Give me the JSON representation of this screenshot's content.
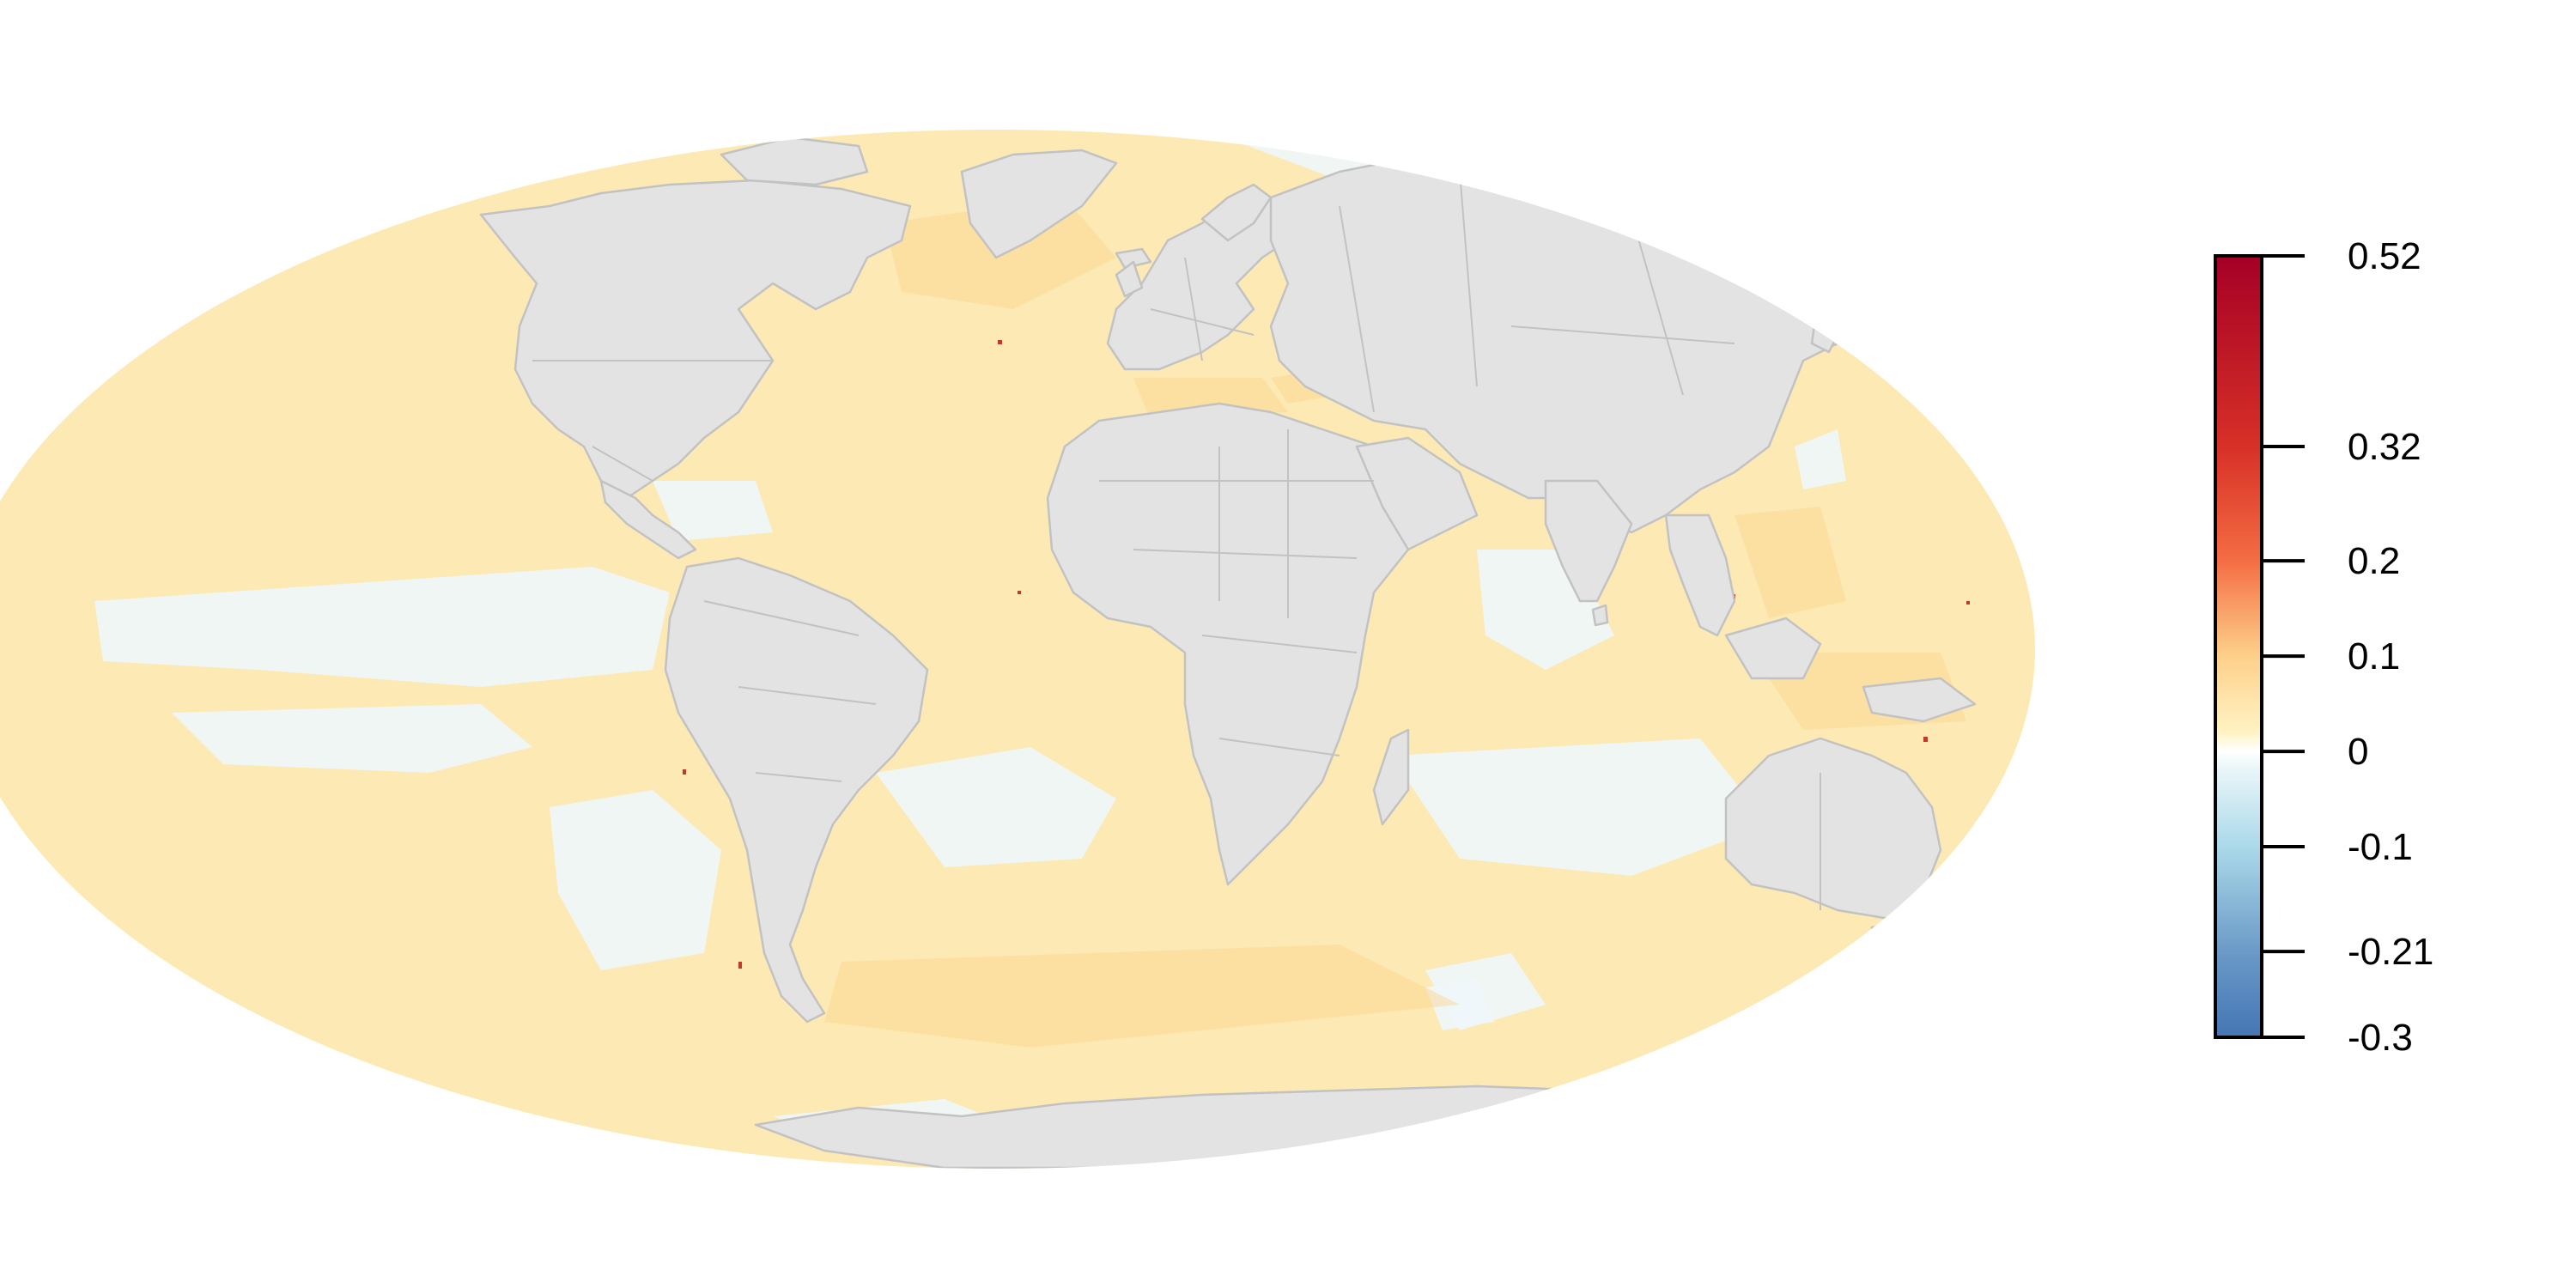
{
  "map": {
    "projection": "Mollweide",
    "ocean_base_color": "#fde9b4",
    "land_color": "#e3e3e3",
    "border_color": "#c2c2c2",
    "negative_patch_color": "#eef7fb",
    "positive_patch_color": "#fbd48c",
    "hotspot_color": "#c0392b"
  },
  "legend": {
    "type": "continuous-colorbar",
    "placement": "right",
    "range": [
      -0.3,
      0.52
    ],
    "ticks": [
      {
        "value": 0.52,
        "label": "0.52"
      },
      {
        "value": 0.32,
        "label": "0.32"
      },
      {
        "value": 0.2,
        "label": "0.2"
      },
      {
        "value": 0.1,
        "label": "0.1"
      },
      {
        "value": 0,
        "label": "0"
      },
      {
        "value": -0.1,
        "label": "-0.1"
      },
      {
        "value": -0.21,
        "label": "-0.21"
      },
      {
        "value": -0.3,
        "label": "-0.3"
      }
    ],
    "color_stops": [
      {
        "value": -0.3,
        "color": "#4575b4"
      },
      {
        "value": -0.21,
        "color": "#6b9ac8"
      },
      {
        "value": -0.1,
        "color": "#abd9e9"
      },
      {
        "value": -0.02,
        "color": "#e8f5f9"
      },
      {
        "value": 0,
        "color": "#ffffff"
      },
      {
        "value": 0.02,
        "color": "#fff3c4"
      },
      {
        "value": 0.1,
        "color": "#fdd08a"
      },
      {
        "value": 0.2,
        "color": "#f46d43"
      },
      {
        "value": 0.32,
        "color": "#d73027"
      },
      {
        "value": 0.52,
        "color": "#a50026"
      }
    ]
  }
}
